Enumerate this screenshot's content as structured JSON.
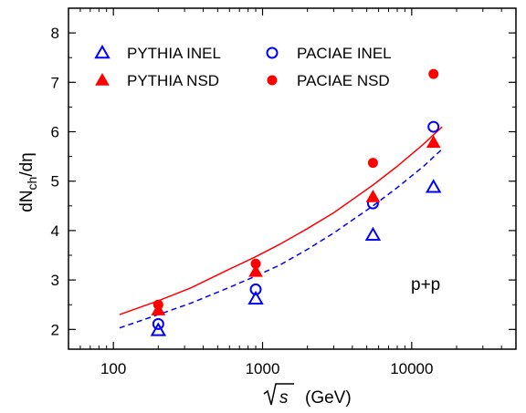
{
  "chart_data": {
    "type": "scatter",
    "title": "",
    "xlabel": "(GeV)",
    "xlabel_radicand": "s",
    "ylabel_main": "dN",
    "ylabel_sub": "ch",
    "ylabel_tail": "/dη",
    "xscale": "log",
    "xlim": [
      50,
      50000
    ],
    "ylim": [
      1.6,
      8.5
    ],
    "x_ticks": [
      100,
      1000,
      10000
    ],
    "x_tick_labels": [
      "100",
      "1000",
      "10000"
    ],
    "y_ticks": [
      2,
      3,
      4,
      5,
      6,
      7,
      8
    ],
    "y_tick_labels": [
      "2",
      "3",
      "4",
      "5",
      "6",
      "7",
      "8"
    ],
    "grid": false,
    "legend_position": "top-left",
    "annotation": "p+p",
    "series": [
      {
        "name": "PYTHIA INEL",
        "marker": "triangle-open",
        "color": "#0000ff",
        "x": [
          200,
          900,
          5500,
          14000
        ],
        "y": [
          1.98,
          2.62,
          3.91,
          4.88
        ]
      },
      {
        "name": "PACIAE INEL",
        "marker": "circle-open",
        "color": "#0000ff",
        "x": [
          200,
          900,
          5500,
          14000
        ],
        "y": [
          2.11,
          2.81,
          4.55,
          6.1
        ]
      },
      {
        "name": "PYTHIA NSD",
        "marker": "triangle-filled",
        "color": "#ff0000",
        "x": [
          200,
          900,
          5500,
          14000
        ],
        "y": [
          2.39,
          3.17,
          4.68,
          5.78
        ]
      },
      {
        "name": "PACIAE NSD",
        "marker": "circle-filled",
        "color": "#ff0000",
        "x": [
          200,
          900,
          5500,
          14000
        ],
        "y": [
          2.5,
          3.33,
          5.37,
          7.17
        ]
      }
    ],
    "curves": [
      {
        "style": "solid",
        "color": "#ff0000",
        "x": [
          110,
          200,
          330,
          600,
          900,
          1300,
          2000,
          3000,
          5500,
          8000,
          12000,
          16000
        ],
        "y": [
          2.3,
          2.58,
          2.84,
          3.22,
          3.47,
          3.72,
          4.04,
          4.36,
          4.92,
          5.3,
          5.75,
          6.1
        ]
      },
      {
        "style": "dashed",
        "color": "#0000ff",
        "x": [
          110,
          200,
          330,
          600,
          900,
          1300,
          2000,
          3000,
          5500,
          8000,
          12000,
          16000
        ],
        "y": [
          2.03,
          2.3,
          2.53,
          2.85,
          3.08,
          3.3,
          3.62,
          3.95,
          4.5,
          4.87,
          5.3,
          5.65
        ]
      }
    ]
  }
}
